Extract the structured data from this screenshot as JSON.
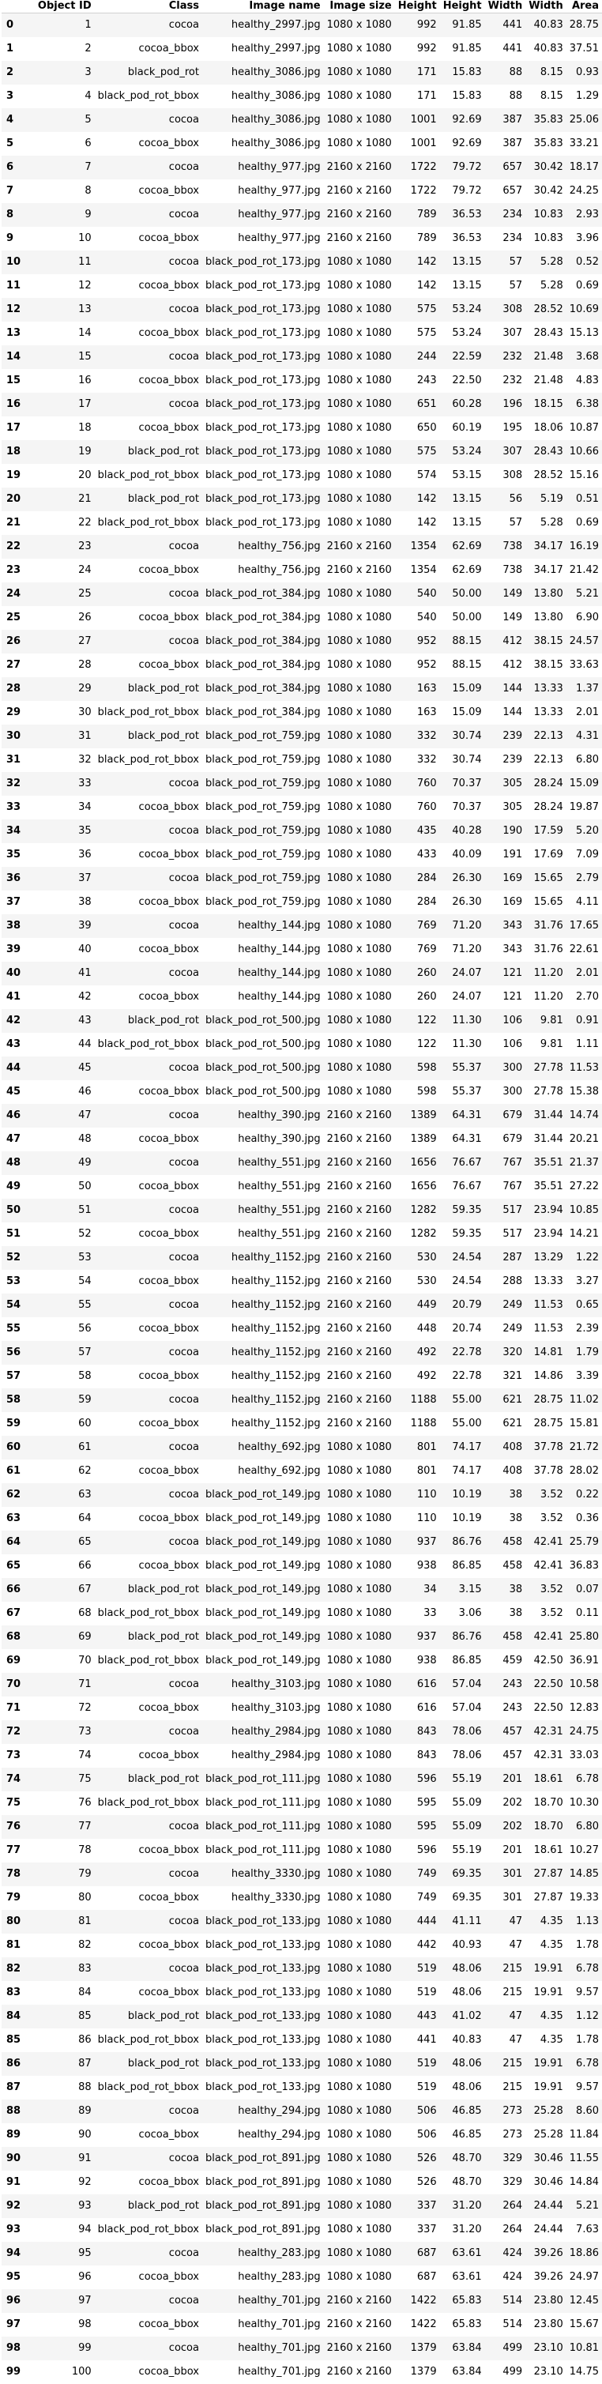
{
  "columns": [
    "",
    "Object ID",
    "Class",
    "Image name",
    "Image size",
    "Height",
    "Height",
    "Width",
    "Width",
    "Area"
  ],
  "rows": [
    [
      "0",
      "1",
      "cocoa",
      "healthy_2997.jpg",
      "1080 x 1080",
      "992",
      "91.85",
      "441",
      "40.83",
      "28.75"
    ],
    [
      "1",
      "2",
      "cocoa_bbox",
      "healthy_2997.jpg",
      "1080 x 1080",
      "992",
      "91.85",
      "441",
      "40.83",
      "37.51"
    ],
    [
      "2",
      "3",
      "black_pod_rot",
      "healthy_3086.jpg",
      "1080 x 1080",
      "171",
      "15.83",
      "88",
      "8.15",
      "0.93"
    ],
    [
      "3",
      "4",
      "black_pod_rot_bbox",
      "healthy_3086.jpg",
      "1080 x 1080",
      "171",
      "15.83",
      "88",
      "8.15",
      "1.29"
    ],
    [
      "4",
      "5",
      "cocoa",
      "healthy_3086.jpg",
      "1080 x 1080",
      "1001",
      "92.69",
      "387",
      "35.83",
      "25.06"
    ],
    [
      "5",
      "6",
      "cocoa_bbox",
      "healthy_3086.jpg",
      "1080 x 1080",
      "1001",
      "92.69",
      "387",
      "35.83",
      "33.21"
    ],
    [
      "6",
      "7",
      "cocoa",
      "healthy_977.jpg",
      "2160 x 2160",
      "1722",
      "79.72",
      "657",
      "30.42",
      "18.17"
    ],
    [
      "7",
      "8",
      "cocoa_bbox",
      "healthy_977.jpg",
      "2160 x 2160",
      "1722",
      "79.72",
      "657",
      "30.42",
      "24.25"
    ],
    [
      "8",
      "9",
      "cocoa",
      "healthy_977.jpg",
      "2160 x 2160",
      "789",
      "36.53",
      "234",
      "10.83",
      "2.93"
    ],
    [
      "9",
      "10",
      "cocoa_bbox",
      "healthy_977.jpg",
      "2160 x 2160",
      "789",
      "36.53",
      "234",
      "10.83",
      "3.96"
    ],
    [
      "10",
      "11",
      "cocoa",
      "black_pod_rot_173.jpg",
      "1080 x 1080",
      "142",
      "13.15",
      "57",
      "5.28",
      "0.52"
    ],
    [
      "11",
      "12",
      "cocoa_bbox",
      "black_pod_rot_173.jpg",
      "1080 x 1080",
      "142",
      "13.15",
      "57",
      "5.28",
      "0.69"
    ],
    [
      "12",
      "13",
      "cocoa",
      "black_pod_rot_173.jpg",
      "1080 x 1080",
      "575",
      "53.24",
      "308",
      "28.52",
      "10.69"
    ],
    [
      "13",
      "14",
      "cocoa_bbox",
      "black_pod_rot_173.jpg",
      "1080 x 1080",
      "575",
      "53.24",
      "307",
      "28.43",
      "15.13"
    ],
    [
      "14",
      "15",
      "cocoa",
      "black_pod_rot_173.jpg",
      "1080 x 1080",
      "244",
      "22.59",
      "232",
      "21.48",
      "3.68"
    ],
    [
      "15",
      "16",
      "cocoa_bbox",
      "black_pod_rot_173.jpg",
      "1080 x 1080",
      "243",
      "22.50",
      "232",
      "21.48",
      "4.83"
    ],
    [
      "16",
      "17",
      "cocoa",
      "black_pod_rot_173.jpg",
      "1080 x 1080",
      "651",
      "60.28",
      "196",
      "18.15",
      "6.38"
    ],
    [
      "17",
      "18",
      "cocoa_bbox",
      "black_pod_rot_173.jpg",
      "1080 x 1080",
      "650",
      "60.19",
      "195",
      "18.06",
      "10.87"
    ],
    [
      "18",
      "19",
      "black_pod_rot",
      "black_pod_rot_173.jpg",
      "1080 x 1080",
      "575",
      "53.24",
      "307",
      "28.43",
      "10.66"
    ],
    [
      "19",
      "20",
      "black_pod_rot_bbox",
      "black_pod_rot_173.jpg",
      "1080 x 1080",
      "574",
      "53.15",
      "308",
      "28.52",
      "15.16"
    ],
    [
      "20",
      "21",
      "black_pod_rot",
      "black_pod_rot_173.jpg",
      "1080 x 1080",
      "142",
      "13.15",
      "56",
      "5.19",
      "0.51"
    ],
    [
      "21",
      "22",
      "black_pod_rot_bbox",
      "black_pod_rot_173.jpg",
      "1080 x 1080",
      "142",
      "13.15",
      "57",
      "5.28",
      "0.69"
    ],
    [
      "22",
      "23",
      "cocoa",
      "healthy_756.jpg",
      "2160 x 2160",
      "1354",
      "62.69",
      "738",
      "34.17",
      "16.19"
    ],
    [
      "23",
      "24",
      "cocoa_bbox",
      "healthy_756.jpg",
      "2160 x 2160",
      "1354",
      "62.69",
      "738",
      "34.17",
      "21.42"
    ],
    [
      "24",
      "25",
      "cocoa",
      "black_pod_rot_384.jpg",
      "1080 x 1080",
      "540",
      "50.00",
      "149",
      "13.80",
      "5.21"
    ],
    [
      "25",
      "26",
      "cocoa_bbox",
      "black_pod_rot_384.jpg",
      "1080 x 1080",
      "540",
      "50.00",
      "149",
      "13.80",
      "6.90"
    ],
    [
      "26",
      "27",
      "cocoa",
      "black_pod_rot_384.jpg",
      "1080 x 1080",
      "952",
      "88.15",
      "412",
      "38.15",
      "24.57"
    ],
    [
      "27",
      "28",
      "cocoa_bbox",
      "black_pod_rot_384.jpg",
      "1080 x 1080",
      "952",
      "88.15",
      "412",
      "38.15",
      "33.63"
    ],
    [
      "28",
      "29",
      "black_pod_rot",
      "black_pod_rot_384.jpg",
      "1080 x 1080",
      "163",
      "15.09",
      "144",
      "13.33",
      "1.37"
    ],
    [
      "29",
      "30",
      "black_pod_rot_bbox",
      "black_pod_rot_384.jpg",
      "1080 x 1080",
      "163",
      "15.09",
      "144",
      "13.33",
      "2.01"
    ],
    [
      "30",
      "31",
      "black_pod_rot",
      "black_pod_rot_759.jpg",
      "1080 x 1080",
      "332",
      "30.74",
      "239",
      "22.13",
      "4.31"
    ],
    [
      "31",
      "32",
      "black_pod_rot_bbox",
      "black_pod_rot_759.jpg",
      "1080 x 1080",
      "332",
      "30.74",
      "239",
      "22.13",
      "6.80"
    ],
    [
      "32",
      "33",
      "cocoa",
      "black_pod_rot_759.jpg",
      "1080 x 1080",
      "760",
      "70.37",
      "305",
      "28.24",
      "15.09"
    ],
    [
      "33",
      "34",
      "cocoa_bbox",
      "black_pod_rot_759.jpg",
      "1080 x 1080",
      "760",
      "70.37",
      "305",
      "28.24",
      "19.87"
    ],
    [
      "34",
      "35",
      "cocoa",
      "black_pod_rot_759.jpg",
      "1080 x 1080",
      "435",
      "40.28",
      "190",
      "17.59",
      "5.20"
    ],
    [
      "35",
      "36",
      "cocoa_bbox",
      "black_pod_rot_759.jpg",
      "1080 x 1080",
      "433",
      "40.09",
      "191",
      "17.69",
      "7.09"
    ],
    [
      "36",
      "37",
      "cocoa",
      "black_pod_rot_759.jpg",
      "1080 x 1080",
      "284",
      "26.30",
      "169",
      "15.65",
      "2.79"
    ],
    [
      "37",
      "38",
      "cocoa_bbox",
      "black_pod_rot_759.jpg",
      "1080 x 1080",
      "284",
      "26.30",
      "169",
      "15.65",
      "4.11"
    ],
    [
      "38",
      "39",
      "cocoa",
      "healthy_144.jpg",
      "1080 x 1080",
      "769",
      "71.20",
      "343",
      "31.76",
      "17.65"
    ],
    [
      "39",
      "40",
      "cocoa_bbox",
      "healthy_144.jpg",
      "1080 x 1080",
      "769",
      "71.20",
      "343",
      "31.76",
      "22.61"
    ],
    [
      "40",
      "41",
      "cocoa",
      "healthy_144.jpg",
      "1080 x 1080",
      "260",
      "24.07",
      "121",
      "11.20",
      "2.01"
    ],
    [
      "41",
      "42",
      "cocoa_bbox",
      "healthy_144.jpg",
      "1080 x 1080",
      "260",
      "24.07",
      "121",
      "11.20",
      "2.70"
    ],
    [
      "42",
      "43",
      "black_pod_rot",
      "black_pod_rot_500.jpg",
      "1080 x 1080",
      "122",
      "11.30",
      "106",
      "9.81",
      "0.91"
    ],
    [
      "43",
      "44",
      "black_pod_rot_bbox",
      "black_pod_rot_500.jpg",
      "1080 x 1080",
      "122",
      "11.30",
      "106",
      "9.81",
      "1.11"
    ],
    [
      "44",
      "45",
      "cocoa",
      "black_pod_rot_500.jpg",
      "1080 x 1080",
      "598",
      "55.37",
      "300",
      "27.78",
      "11.53"
    ],
    [
      "45",
      "46",
      "cocoa_bbox",
      "black_pod_rot_500.jpg",
      "1080 x 1080",
      "598",
      "55.37",
      "300",
      "27.78",
      "15.38"
    ],
    [
      "46",
      "47",
      "cocoa",
      "healthy_390.jpg",
      "2160 x 2160",
      "1389",
      "64.31",
      "679",
      "31.44",
      "14.74"
    ],
    [
      "47",
      "48",
      "cocoa_bbox",
      "healthy_390.jpg",
      "2160 x 2160",
      "1389",
      "64.31",
      "679",
      "31.44",
      "20.21"
    ],
    [
      "48",
      "49",
      "cocoa",
      "healthy_551.jpg",
      "2160 x 2160",
      "1656",
      "76.67",
      "767",
      "35.51",
      "21.37"
    ],
    [
      "49",
      "50",
      "cocoa_bbox",
      "healthy_551.jpg",
      "2160 x 2160",
      "1656",
      "76.67",
      "767",
      "35.51",
      "27.22"
    ],
    [
      "50",
      "51",
      "cocoa",
      "healthy_551.jpg",
      "2160 x 2160",
      "1282",
      "59.35",
      "517",
      "23.94",
      "10.85"
    ],
    [
      "51",
      "52",
      "cocoa_bbox",
      "healthy_551.jpg",
      "2160 x 2160",
      "1282",
      "59.35",
      "517",
      "23.94",
      "14.21"
    ],
    [
      "52",
      "53",
      "cocoa",
      "healthy_1152.jpg",
      "2160 x 2160",
      "530",
      "24.54",
      "287",
      "13.29",
      "1.22"
    ],
    [
      "53",
      "54",
      "cocoa_bbox",
      "healthy_1152.jpg",
      "2160 x 2160",
      "530",
      "24.54",
      "288",
      "13.33",
      "3.27"
    ],
    [
      "54",
      "55",
      "cocoa",
      "healthy_1152.jpg",
      "2160 x 2160",
      "449",
      "20.79",
      "249",
      "11.53",
      "0.65"
    ],
    [
      "55",
      "56",
      "cocoa_bbox",
      "healthy_1152.jpg",
      "2160 x 2160",
      "448",
      "20.74",
      "249",
      "11.53",
      "2.39"
    ],
    [
      "56",
      "57",
      "cocoa",
      "healthy_1152.jpg",
      "2160 x 2160",
      "492",
      "22.78",
      "320",
      "14.81",
      "1.79"
    ],
    [
      "57",
      "58",
      "cocoa_bbox",
      "healthy_1152.jpg",
      "2160 x 2160",
      "492",
      "22.78",
      "321",
      "14.86",
      "3.39"
    ],
    [
      "58",
      "59",
      "cocoa",
      "healthy_1152.jpg",
      "2160 x 2160",
      "1188",
      "55.00",
      "621",
      "28.75",
      "11.02"
    ],
    [
      "59",
      "60",
      "cocoa_bbox",
      "healthy_1152.jpg",
      "2160 x 2160",
      "1188",
      "55.00",
      "621",
      "28.75",
      "15.81"
    ],
    [
      "60",
      "61",
      "cocoa",
      "healthy_692.jpg",
      "1080 x 1080",
      "801",
      "74.17",
      "408",
      "37.78",
      "21.72"
    ],
    [
      "61",
      "62",
      "cocoa_bbox",
      "healthy_692.jpg",
      "1080 x 1080",
      "801",
      "74.17",
      "408",
      "37.78",
      "28.02"
    ],
    [
      "62",
      "63",
      "cocoa",
      "black_pod_rot_149.jpg",
      "1080 x 1080",
      "110",
      "10.19",
      "38",
      "3.52",
      "0.22"
    ],
    [
      "63",
      "64",
      "cocoa_bbox",
      "black_pod_rot_149.jpg",
      "1080 x 1080",
      "110",
      "10.19",
      "38",
      "3.52",
      "0.36"
    ],
    [
      "64",
      "65",
      "cocoa",
      "black_pod_rot_149.jpg",
      "1080 x 1080",
      "937",
      "86.76",
      "458",
      "42.41",
      "25.79"
    ],
    [
      "65",
      "66",
      "cocoa_bbox",
      "black_pod_rot_149.jpg",
      "1080 x 1080",
      "938",
      "86.85",
      "458",
      "42.41",
      "36.83"
    ],
    [
      "66",
      "67",
      "black_pod_rot",
      "black_pod_rot_149.jpg",
      "1080 x 1080",
      "34",
      "3.15",
      "38",
      "3.52",
      "0.07"
    ],
    [
      "67",
      "68",
      "black_pod_rot_bbox",
      "black_pod_rot_149.jpg",
      "1080 x 1080",
      "33",
      "3.06",
      "38",
      "3.52",
      "0.11"
    ],
    [
      "68",
      "69",
      "black_pod_rot",
      "black_pod_rot_149.jpg",
      "1080 x 1080",
      "937",
      "86.76",
      "458",
      "42.41",
      "25.80"
    ],
    [
      "69",
      "70",
      "black_pod_rot_bbox",
      "black_pod_rot_149.jpg",
      "1080 x 1080",
      "938",
      "86.85",
      "459",
      "42.50",
      "36.91"
    ],
    [
      "70",
      "71",
      "cocoa",
      "healthy_3103.jpg",
      "1080 x 1080",
      "616",
      "57.04",
      "243",
      "22.50",
      "10.58"
    ],
    [
      "71",
      "72",
      "cocoa_bbox",
      "healthy_3103.jpg",
      "1080 x 1080",
      "616",
      "57.04",
      "243",
      "22.50",
      "12.83"
    ],
    [
      "72",
      "73",
      "cocoa",
      "healthy_2984.jpg",
      "1080 x 1080",
      "843",
      "78.06",
      "457",
      "42.31",
      "24.75"
    ],
    [
      "73",
      "74",
      "cocoa_bbox",
      "healthy_2984.jpg",
      "1080 x 1080",
      "843",
      "78.06",
      "457",
      "42.31",
      "33.03"
    ],
    [
      "74",
      "75",
      "black_pod_rot",
      "black_pod_rot_111.jpg",
      "1080 x 1080",
      "596",
      "55.19",
      "201",
      "18.61",
      "6.78"
    ],
    [
      "75",
      "76",
      "black_pod_rot_bbox",
      "black_pod_rot_111.jpg",
      "1080 x 1080",
      "595",
      "55.09",
      "202",
      "18.70",
      "10.30"
    ],
    [
      "76",
      "77",
      "cocoa",
      "black_pod_rot_111.jpg",
      "1080 x 1080",
      "595",
      "55.09",
      "202",
      "18.70",
      "6.80"
    ],
    [
      "77",
      "78",
      "cocoa_bbox",
      "black_pod_rot_111.jpg",
      "1080 x 1080",
      "596",
      "55.19",
      "201",
      "18.61",
      "10.27"
    ],
    [
      "78",
      "79",
      "cocoa",
      "healthy_3330.jpg",
      "1080 x 1080",
      "749",
      "69.35",
      "301",
      "27.87",
      "14.85"
    ],
    [
      "79",
      "80",
      "cocoa_bbox",
      "healthy_3330.jpg",
      "1080 x 1080",
      "749",
      "69.35",
      "301",
      "27.87",
      "19.33"
    ],
    [
      "80",
      "81",
      "cocoa",
      "black_pod_rot_133.jpg",
      "1080 x 1080",
      "444",
      "41.11",
      "47",
      "4.35",
      "1.13"
    ],
    [
      "81",
      "82",
      "cocoa_bbox",
      "black_pod_rot_133.jpg",
      "1080 x 1080",
      "442",
      "40.93",
      "47",
      "4.35",
      "1.78"
    ],
    [
      "82",
      "83",
      "cocoa",
      "black_pod_rot_133.jpg",
      "1080 x 1080",
      "519",
      "48.06",
      "215",
      "19.91",
      "6.78"
    ],
    [
      "83",
      "84",
      "cocoa_bbox",
      "black_pod_rot_133.jpg",
      "1080 x 1080",
      "519",
      "48.06",
      "215",
      "19.91",
      "9.57"
    ],
    [
      "84",
      "85",
      "black_pod_rot",
      "black_pod_rot_133.jpg",
      "1080 x 1080",
      "443",
      "41.02",
      "47",
      "4.35",
      "1.12"
    ],
    [
      "85",
      "86",
      "black_pod_rot_bbox",
      "black_pod_rot_133.jpg",
      "1080 x 1080",
      "441",
      "40.83",
      "47",
      "4.35",
      "1.78"
    ],
    [
      "86",
      "87",
      "black_pod_rot",
      "black_pod_rot_133.jpg",
      "1080 x 1080",
      "519",
      "48.06",
      "215",
      "19.91",
      "6.78"
    ],
    [
      "87",
      "88",
      "black_pod_rot_bbox",
      "black_pod_rot_133.jpg",
      "1080 x 1080",
      "519",
      "48.06",
      "215",
      "19.91",
      "9.57"
    ],
    [
      "88",
      "89",
      "cocoa",
      "healthy_294.jpg",
      "1080 x 1080",
      "506",
      "46.85",
      "273",
      "25.28",
      "8.60"
    ],
    [
      "89",
      "90",
      "cocoa_bbox",
      "healthy_294.jpg",
      "1080 x 1080",
      "506",
      "46.85",
      "273",
      "25.28",
      "11.84"
    ],
    [
      "90",
      "91",
      "cocoa",
      "black_pod_rot_891.jpg",
      "1080 x 1080",
      "526",
      "48.70",
      "329",
      "30.46",
      "11.55"
    ],
    [
      "91",
      "92",
      "cocoa_bbox",
      "black_pod_rot_891.jpg",
      "1080 x 1080",
      "526",
      "48.70",
      "329",
      "30.46",
      "14.84"
    ],
    [
      "92",
      "93",
      "black_pod_rot",
      "black_pod_rot_891.jpg",
      "1080 x 1080",
      "337",
      "31.20",
      "264",
      "24.44",
      "5.21"
    ],
    [
      "93",
      "94",
      "black_pod_rot_bbox",
      "black_pod_rot_891.jpg",
      "1080 x 1080",
      "337",
      "31.20",
      "264",
      "24.44",
      "7.63"
    ],
    [
      "94",
      "95",
      "cocoa",
      "healthy_283.jpg",
      "1080 x 1080",
      "687",
      "63.61",
      "424",
      "39.26",
      "18.86"
    ],
    [
      "95",
      "96",
      "cocoa_bbox",
      "healthy_283.jpg",
      "1080 x 1080",
      "687",
      "63.61",
      "424",
      "39.26",
      "24.97"
    ],
    [
      "96",
      "97",
      "cocoa",
      "healthy_701.jpg",
      "2160 x 2160",
      "1422",
      "65.83",
      "514",
      "23.80",
      "12.45"
    ],
    [
      "97",
      "98",
      "cocoa_bbox",
      "healthy_701.jpg",
      "2160 x 2160",
      "1422",
      "65.83",
      "514",
      "23.80",
      "15.67"
    ],
    [
      "98",
      "99",
      "cocoa",
      "healthy_701.jpg",
      "2160 x 2160",
      "1379",
      "63.84",
      "499",
      "23.10",
      "10.81"
    ],
    [
      "99",
      "100",
      "cocoa_bbox",
      "healthy_701.jpg",
      "2160 x 2160",
      "1379",
      "63.84",
      "499",
      "23.10",
      "14.75"
    ]
  ]
}
